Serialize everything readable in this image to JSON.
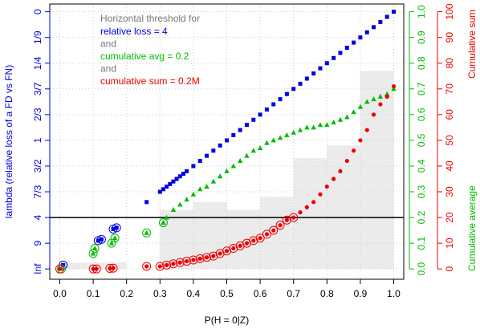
{
  "chart_data": {
    "type": "scatter",
    "xlabel": "P(H = 0|Z)",
    "ylabel": "lambda (relative loss of a FD vs FN)",
    "y2label": "Cumulative average",
    "y3label": "Cumulative sum",
    "annotations": [
      {
        "text": "Horizontal threshold for",
        "color": "#777777"
      },
      {
        "text": "relative loss = 4",
        "color": "#0000dd"
      },
      {
        "text": "and",
        "color": "#777777"
      },
      {
        "text": "cumulative avg = 0.2",
        "color": "#00bb00"
      },
      {
        "text": "and",
        "color": "#777777"
      },
      {
        "text": "cumulative sum = 0.2M",
        "color": "#ee0000"
      }
    ],
    "xlim": [
      -0.03,
      1.03
    ],
    "xticks": [
      {
        "value": 0,
        "label": "0.0"
      },
      0.1,
      0.2,
      0.3,
      0.4,
      0.5,
      0.6,
      0.7,
      0.8,
      0.9,
      {
        "value": 1,
        "label": "1.0"
      }
    ],
    "ylim": [
      1.04,
      -0.03
    ],
    "yticks": [
      0,
      {
        "value": 0.1,
        "label": "1/9"
      },
      {
        "value": 0.2,
        "label": "1/4"
      },
      {
        "value": 0.3,
        "label": "3/7"
      },
      {
        "value": 0.4,
        "label": "2/3"
      },
      {
        "value": 0.5,
        "label": "1"
      },
      {
        "value": 0.6,
        "label": "3/2"
      },
      {
        "value": 0.7,
        "label": "7/3"
      },
      {
        "value": 0.8,
        "label": "4"
      },
      {
        "value": 0.9,
        "label": "9"
      },
      {
        "value": 1,
        "label": "Inf"
      }
    ],
    "y2lim": [
      -0.04,
      1.03
    ],
    "y2ticks": [
      {
        "value": 0,
        "label": "0.0"
      },
      0.1,
      0.2,
      0.3,
      0.4,
      0.5,
      0.6,
      0.7,
      0.8,
      0.9,
      {
        "value": 1,
        "label": "1.0"
      }
    ],
    "y3lim": [
      -4,
      103
    ],
    "y3ticks": [
      0,
      10,
      20,
      30,
      40,
      50,
      60,
      70,
      80,
      90,
      100
    ],
    "grid": true,
    "hline": 0.8,
    "histogram": {
      "axis": "y2",
      "color": "#ebebeb",
      "bins": [
        0,
        0.1,
        0.2,
        0.3,
        0.4,
        0.5,
        0.6,
        0.7,
        0.8,
        0.9,
        1.0
      ],
      "values": [
        0.025,
        0.025,
        0,
        0.23,
        0.26,
        0.23,
        0.28,
        0.43,
        0.48,
        0.77
      ]
    },
    "series": [
      {
        "axis": "y",
        "color": "#0000dd",
        "marker": "square",
        "ring": false,
        "x": [
          0.26,
          0.3,
          0.31,
          0.32,
          0.33,
          0.34,
          0.35,
          0.36,
          0.37,
          0.38,
          0.4,
          0.42,
          0.44,
          0.46,
          0.48,
          0.5,
          0.52,
          0.54,
          0.56,
          0.58,
          0.6,
          0.62,
          0.64,
          0.66,
          0.68,
          0.7,
          0.72,
          0.74,
          0.76,
          0.78,
          0.8,
          0.82,
          0.84,
          0.86,
          0.88,
          0.9,
          0.92,
          0.94,
          0.96,
          0.98,
          1.0
        ],
        "values": [
          0.74,
          0.7,
          0.69,
          0.68,
          0.67,
          0.66,
          0.65,
          0.64,
          0.63,
          0.62,
          0.6,
          0.58,
          0.56,
          0.54,
          0.52,
          0.5,
          0.48,
          0.46,
          0.44,
          0.42,
          0.4,
          0.38,
          0.36,
          0.34,
          0.32,
          0.3,
          0.28,
          0.26,
          0.24,
          0.22,
          0.2,
          0.18,
          0.16,
          0.14,
          0.12,
          0.1,
          0.08,
          0.06,
          0.04,
          0.02,
          0
        ]
      },
      {
        "axis": "y",
        "color": "#0000dd",
        "marker": "square",
        "ring": true,
        "x": [
          0.01,
          0.115,
          0.125,
          0.16,
          0.17
        ],
        "values": [
          0.985,
          0.89,
          0.885,
          0.845,
          0.84
        ]
      },
      {
        "axis": "y2",
        "color": "#00bb00",
        "marker": "triangle",
        "ring": false,
        "x": [
          0.32,
          0.34,
          0.36,
          0.38,
          0.4,
          0.42,
          0.44,
          0.46,
          0.48,
          0.5,
          0.52,
          0.54,
          0.56,
          0.58,
          0.6,
          0.62,
          0.64,
          0.66,
          0.68,
          0.7,
          0.72,
          0.74,
          0.76,
          0.78,
          0.8,
          0.82,
          0.84,
          0.86,
          0.88,
          0.9,
          0.92,
          0.94,
          0.96,
          0.98,
          1.0
        ],
        "values": [
          0.2,
          0.23,
          0.25,
          0.27,
          0.29,
          0.31,
          0.32,
          0.34,
          0.36,
          0.38,
          0.4,
          0.42,
          0.44,
          0.46,
          0.47,
          0.49,
          0.5,
          0.51,
          0.52,
          0.53,
          0.54,
          0.55,
          0.55,
          0.56,
          0.56,
          0.57,
          0.58,
          0.59,
          0.61,
          0.63,
          0.65,
          0.66,
          0.67,
          0.68,
          0.7
        ]
      },
      {
        "axis": "y2",
        "color": "#00bb00",
        "marker": "triangle",
        "ring": true,
        "x": [
          0.005,
          0.1,
          0.105,
          0.155,
          0.165,
          0.26,
          0.31
        ],
        "values": [
          0,
          0.06,
          0.08,
          0.1,
          0.12,
          0.14,
          0.18
        ]
      },
      {
        "axis": "y3",
        "color": "#ee0000",
        "marker": "dot",
        "ring": true,
        "x": [
          0,
          0.1,
          0.11,
          0.15,
          0.16,
          0.26,
          0.3,
          0.32,
          0.34,
          0.36,
          0.38,
          0.4,
          0.42,
          0.44,
          0.46,
          0.48,
          0.5,
          0.52,
          0.54,
          0.56,
          0.58,
          0.6,
          0.62,
          0.64,
          0.66,
          0.68,
          0.7
        ],
        "values": [
          0,
          0,
          0,
          0.2,
          0.3,
          1,
          1,
          1.5,
          2,
          2.5,
          3,
          3.5,
          4,
          4.5,
          5,
          6,
          7,
          8,
          9,
          10,
          11,
          12,
          13.5,
          15,
          17,
          19,
          20
        ]
      },
      {
        "axis": "y3",
        "color": "#ee0000",
        "marker": "dot",
        "ring": false,
        "x": [
          0.72,
          0.74,
          0.76,
          0.78,
          0.8,
          0.82,
          0.84,
          0.86,
          0.88,
          0.9,
          0.92,
          0.94,
          0.96,
          0.98,
          1.0
        ],
        "values": [
          22,
          24,
          26,
          29,
          32,
          35,
          38,
          42,
          46,
          50,
          54,
          60,
          64,
          67,
          71
        ]
      }
    ]
  }
}
